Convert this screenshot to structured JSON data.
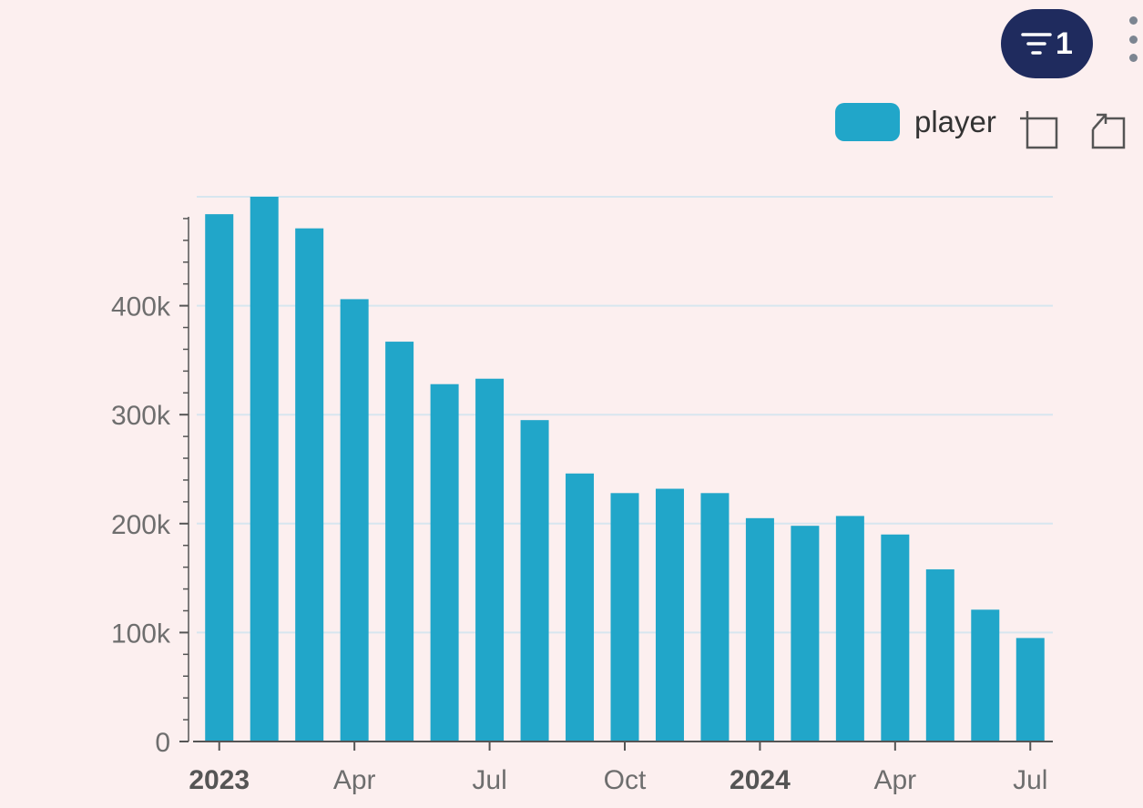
{
  "toolbar": {
    "filter_count": "1",
    "filter_icon": "filter-icon",
    "more_icon": "vertical-dots-icon",
    "zoom_icon": "zoom-in-select-icon",
    "reset_icon": "zoom-reset-icon"
  },
  "legend": {
    "series_name": "player",
    "color": "#21a6c9"
  },
  "chart_data": {
    "type": "bar",
    "title": "",
    "xlabel": "",
    "ylabel": "",
    "legend_position": "top-right",
    "grid": true,
    "ylim": [
      0,
      500000
    ],
    "y_ticks": [
      {
        "value": 0,
        "label": "0"
      },
      {
        "value": 100000,
        "label": "100k"
      },
      {
        "value": 200000,
        "label": "200k"
      },
      {
        "value": 300000,
        "label": "300k"
      },
      {
        "value": 400000,
        "label": "400k"
      }
    ],
    "x_ticks": [
      {
        "index": 0,
        "label": "2023",
        "bold": true
      },
      {
        "index": 3,
        "label": "Apr",
        "bold": false
      },
      {
        "index": 6,
        "label": "Jul",
        "bold": false
      },
      {
        "index": 9,
        "label": "Oct",
        "bold": false
      },
      {
        "index": 12,
        "label": "2024",
        "bold": true
      },
      {
        "index": 15,
        "label": "Apr",
        "bold": false
      },
      {
        "index": 18,
        "label": "Jul",
        "bold": false
      }
    ],
    "categories": [
      "2023-01",
      "2023-02",
      "2023-03",
      "2023-04",
      "2023-05",
      "2023-06",
      "2023-07",
      "2023-08",
      "2023-09",
      "2023-10",
      "2023-11",
      "2023-12",
      "2024-01",
      "2024-02",
      "2024-03",
      "2024-04",
      "2024-05",
      "2024-06",
      "2024-07"
    ],
    "series": [
      {
        "name": "player",
        "color": "#21a6c9",
        "values": [
          484000,
          500000,
          471000,
          406000,
          367000,
          328000,
          333000,
          295000,
          246000,
          228000,
          232000,
          228000,
          205000,
          198000,
          207000,
          190000,
          158000,
          121000,
          95000
        ]
      }
    ]
  }
}
